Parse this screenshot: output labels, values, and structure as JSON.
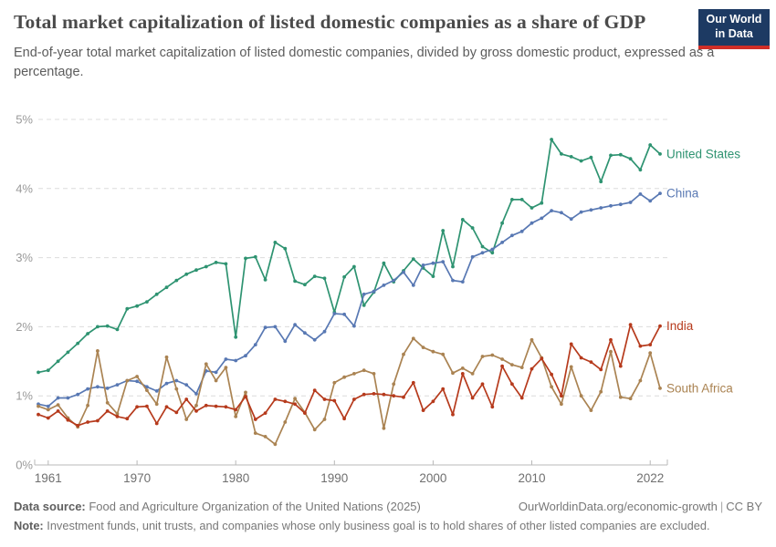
{
  "header": {
    "title": "Total market capitalization of listed domestic companies as a share of GDP",
    "subtitle": "End-of-year total market capitalization of listed domestic companies, divided by gross domestic product, expressed as a percentage.",
    "logo": {
      "line1": "Our World",
      "line2": "in Data",
      "bg_color": "#1d3a63",
      "bar_color": "#d02e27"
    }
  },
  "chart_data": {
    "type": "line",
    "title": "Total market capitalization of listed domestic companies as a share of GDP",
    "xlabel": "",
    "ylabel": "",
    "ylim": [
      0,
      5
    ],
    "yticks": [
      "0%",
      "1%",
      "2%",
      "3%",
      "4%",
      "5%"
    ],
    "xticks": [
      1961,
      1970,
      1980,
      1990,
      2000,
      2010,
      2022
    ],
    "x_range": [
      1960,
      2023
    ],
    "grid": "horizontal-dashed",
    "legend_position": "end-of-line-labels",
    "years": [
      1960,
      1961,
      1962,
      1963,
      1964,
      1965,
      1966,
      1967,
      1968,
      1969,
      1970,
      1971,
      1972,
      1973,
      1974,
      1975,
      1976,
      1977,
      1978,
      1979,
      1980,
      1981,
      1982,
      1983,
      1984,
      1985,
      1986,
      1987,
      1988,
      1989,
      1990,
      1991,
      1992,
      1993,
      1994,
      1995,
      1996,
      1997,
      1998,
      1999,
      2000,
      2001,
      2002,
      2003,
      2004,
      2005,
      2006,
      2007,
      2008,
      2009,
      2010,
      2011,
      2012,
      2013,
      2014,
      2015,
      2016,
      2017,
      2018,
      2019,
      2020,
      2021,
      2022,
      2023
    ],
    "series": [
      {
        "name": "United States",
        "color": "#2e9371",
        "values": [
          1.34,
          1.37,
          1.5,
          1.63,
          1.76,
          1.9,
          2.0,
          2.01,
          1.96,
          2.26,
          2.3,
          2.36,
          2.47,
          2.57,
          2.67,
          2.76,
          2.82,
          2.87,
          2.93,
          2.91,
          1.85,
          2.99,
          3.01,
          2.68,
          3.22,
          3.13,
          2.66,
          2.61,
          2.73,
          2.7,
          2.21,
          2.72,
          2.87,
          2.31,
          2.5,
          2.92,
          2.65,
          2.81,
          2.98,
          2.85,
          2.73,
          3.39,
          2.87,
          3.55,
          3.43,
          3.16,
          3.07,
          3.5,
          3.84,
          3.84,
          3.72,
          3.79,
          4.71,
          4.5,
          4.46,
          4.4,
          4.45,
          4.1,
          4.48,
          4.49,
          4.43,
          4.27,
          4.63,
          4.5
        ]
      },
      {
        "name": "China",
        "color": "#5878b3",
        "values": [
          0.88,
          0.85,
          0.97,
          0.97,
          1.02,
          1.1,
          1.13,
          1.11,
          1.16,
          1.22,
          1.21,
          1.13,
          1.07,
          1.18,
          1.22,
          1.16,
          1.03,
          1.36,
          1.34,
          1.53,
          1.51,
          1.58,
          1.74,
          1.99,
          2.0,
          1.79,
          2.03,
          1.91,
          1.81,
          1.93,
          2.19,
          2.18,
          2.01,
          2.47,
          2.51,
          2.6,
          2.67,
          2.79,
          2.6,
          2.89,
          2.92,
          2.94,
          2.67,
          2.65,
          3.01,
          3.07,
          3.12,
          3.22,
          3.32,
          3.38,
          3.5,
          3.57,
          3.68,
          3.65,
          3.56,
          3.66,
          3.69,
          3.72,
          3.75,
          3.77,
          3.8,
          3.92,
          3.82,
          3.93
        ]
      },
      {
        "name": "India",
        "color": "#b63a1c",
        "values": [
          0.73,
          0.68,
          0.78,
          0.65,
          0.57,
          0.62,
          0.64,
          0.78,
          0.7,
          0.67,
          0.84,
          0.85,
          0.6,
          0.84,
          0.76,
          0.95,
          0.78,
          0.86,
          0.85,
          0.84,
          0.8,
          0.99,
          0.66,
          0.75,
          0.95,
          0.92,
          0.88,
          0.75,
          1.08,
          0.95,
          0.93,
          0.67,
          0.95,
          1.02,
          1.03,
          1.02,
          1.0,
          0.98,
          1.19,
          0.79,
          0.92,
          1.1,
          0.73,
          1.32,
          0.97,
          1.17,
          0.84,
          1.43,
          1.17,
          0.97,
          1.39,
          1.54,
          1.31,
          1.0,
          1.75,
          1.55,
          1.49,
          1.38,
          1.81,
          1.43,
          2.03,
          1.72,
          1.74,
          2.01
        ]
      },
      {
        "name": "South Africa",
        "color": "#aa8352",
        "values": [
          0.85,
          0.8,
          0.87,
          0.68,
          0.55,
          0.86,
          1.65,
          0.9,
          0.74,
          1.22,
          1.28,
          1.08,
          0.88,
          1.56,
          1.1,
          0.66,
          0.86,
          1.46,
          1.22,
          1.41,
          0.7,
          1.05,
          0.46,
          0.41,
          0.3,
          0.62,
          0.96,
          0.76,
          0.51,
          0.66,
          1.19,
          1.27,
          1.32,
          1.37,
          1.32,
          0.53,
          1.17,
          1.6,
          1.83,
          1.7,
          1.64,
          1.6,
          1.33,
          1.4,
          1.32,
          1.57,
          1.59,
          1.53,
          1.45,
          1.41,
          1.81,
          1.55,
          1.13,
          0.88,
          1.42,
          1.0,
          0.79,
          1.06,
          1.64,
          0.98,
          0.96,
          1.22,
          1.62,
          1.11
        ]
      }
    ]
  },
  "footer": {
    "data_source_label": "Data source:",
    "data_source_text": " Food and Agriculture Organization of the United Nations (2025)",
    "attribution": "OurWorldinData.org/economic-growth",
    "separator": "|",
    "license": "CC BY",
    "note_label": "Note:",
    "note_text": " Investment funds, unit trusts, and companies whose only business goal is to hold shares of other listed companies are excluded."
  }
}
